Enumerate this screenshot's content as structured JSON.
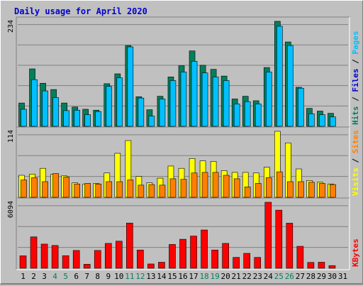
{
  "chart_data": {
    "type": "bar",
    "title": "Daily usage for April 2020",
    "colors": {
      "background": "#c0c0c0",
      "title": "#0000cc",
      "hits": "#00805c",
      "files": "#00c0ff",
      "pages": "#00c0ff",
      "visits": "#ffff00",
      "sites": "#ff8000",
      "kbytes": "#ff0000",
      "weekend_label": "#00805c",
      "weekday_label": "#000000"
    },
    "categories": [
      "1",
      "2",
      "3",
      "4",
      "5",
      "6",
      "7",
      "8",
      "9",
      "10",
      "11",
      "12",
      "13",
      "14",
      "15",
      "16",
      "17",
      "18",
      "19",
      "20",
      "21",
      "22",
      "23",
      "24",
      "25",
      "26",
      "27",
      "28",
      "29",
      "30",
      "31"
    ],
    "weekend_days": [
      "4",
      "5",
      "11",
      "12",
      "18",
      "19",
      "25",
      "26"
    ],
    "panels": [
      {
        "id": "hits-files-pages",
        "ytick_label": "234",
        "ymax": 234,
        "legend": [
          {
            "text": "Hits",
            "color": "#00805c"
          },
          {
            "text": " / ",
            "color": "#000000"
          },
          {
            "text": "Files",
            "color": "#0000cc"
          },
          {
            "text": " / ",
            "color": "#000000"
          },
          {
            "text": "Pages",
            "color": "#00c0ff"
          }
        ],
        "series": [
          {
            "name": "Hits",
            "color": "#00805c",
            "values": [
              52,
              128,
              96,
              82,
              52,
              43,
              38,
              36,
              95,
              117,
              180,
              66,
              37,
              67,
              110,
              135,
              168,
              136,
              127,
              112,
              61,
              67,
              57,
              131,
              234,
              188,
              87,
              40,
              34,
              29,
              0
            ]
          },
          {
            "name": "Files",
            "color": "#00c0ff",
            "values": [
              38,
              104,
              79,
              64,
              35,
              36,
              26,
              33,
              89,
              108,
              177,
              63,
              23,
              61,
              102,
              121,
              145,
              119,
              110,
              102,
              50,
              55,
              50,
              121,
              223,
              180,
              85,
              28,
              26,
              21,
              0
            ]
          }
        ]
      },
      {
        "id": "visits-sites",
        "ytick_label": "114",
        "ymax": 114,
        "legend": [
          {
            "text": "Visits",
            "color": "#ffff00"
          },
          {
            "text": " / ",
            "color": "#000000"
          },
          {
            "text": "Sites",
            "color": "#ff8000"
          }
        ],
        "series": [
          {
            "name": "Visits",
            "color": "#ffff00",
            "values": [
              38,
              40,
              50,
              40,
              37,
              25,
              23,
              24,
              42,
              76,
              98,
              36,
              25,
              33,
              54,
              50,
              67,
              63,
              62,
              46,
              43,
              43,
              42,
              52,
              114,
              94,
              49,
              29,
              26,
              23,
              0
            ]
          },
          {
            "name": "Sites",
            "color": "#ff8000",
            "values": [
              30,
              34,
              27,
              41,
              35,
              23,
              24,
              23,
              27,
              27,
              30,
              21,
              22,
              21,
              32,
              31,
              42,
              43,
              43,
              38,
              32,
              18,
              24,
              34,
              44,
              27,
              27,
              26,
              24,
              22,
              0
            ]
          }
        ]
      },
      {
        "id": "kbytes",
        "ytick_label": "6094",
        "ymax": 6094,
        "legend": [
          {
            "text": "KBytes",
            "color": "#ff0000"
          }
        ],
        "series": [
          {
            "name": "KBytes",
            "color": "#ff0000",
            "values": [
              1148,
              2899,
              2231,
              2104,
              1162,
              1644,
              368,
              1644,
              2297,
              2501,
              4176,
              1685,
              397,
              556,
              2199,
              2679,
              2972,
              3535,
              1685,
              2297,
              1002,
              1377,
              1002,
              6094,
              5364,
              4164,
              2027,
              539,
              557,
              247,
              0
            ]
          }
        ]
      }
    ]
  }
}
